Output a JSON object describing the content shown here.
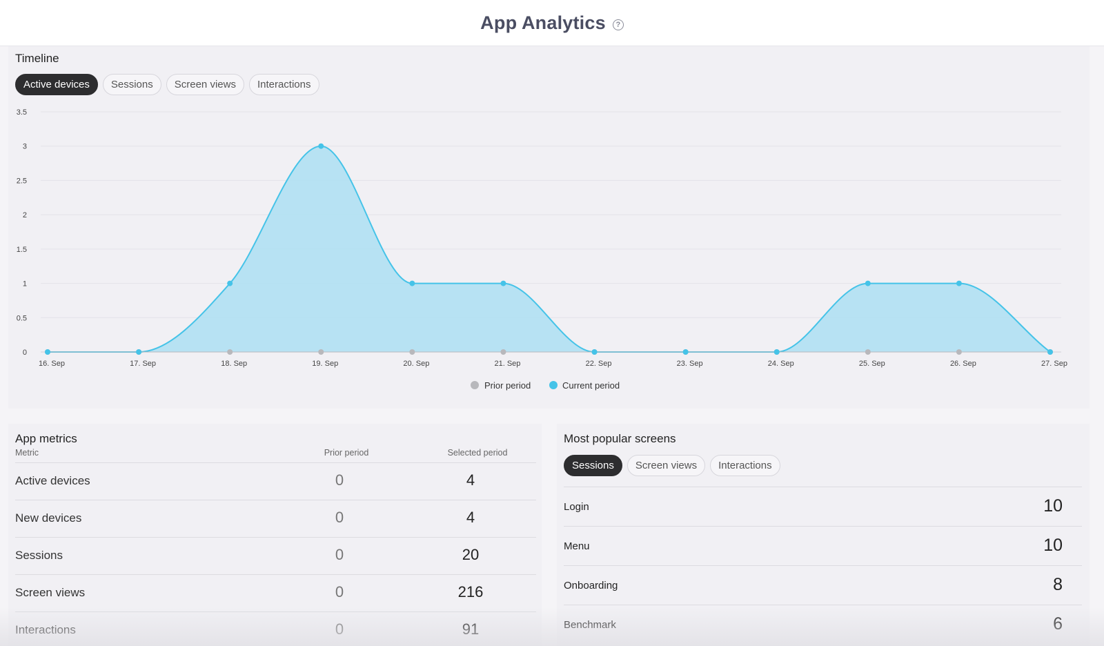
{
  "header": {
    "title": "App Analytics",
    "help_icon": "question-circle-icon"
  },
  "timeline": {
    "title": "Timeline",
    "tabs": [
      {
        "label": "Active devices",
        "active": true
      },
      {
        "label": "Sessions",
        "active": false
      },
      {
        "label": "Screen views",
        "active": false
      },
      {
        "label": "Interactions",
        "active": false
      }
    ]
  },
  "chart_data": {
    "type": "area",
    "x": [
      "16. Sep",
      "17. Sep",
      "18. Sep",
      "19. Sep",
      "20. Sep",
      "21. Sep",
      "22. Sep",
      "23. Sep",
      "24. Sep",
      "25. Sep",
      "26. Sep",
      "27. Sep"
    ],
    "y_ticks": [
      "0",
      "0.5",
      "1",
      "1.5",
      "2",
      "2.5",
      "3",
      "3.5"
    ],
    "ylim": [
      0,
      3.5
    ],
    "grid": true,
    "legend_position": "bottom-center",
    "series": [
      {
        "name": "Prior period",
        "color": "#b8b8bc",
        "values": [
          0,
          0,
          0,
          0,
          0,
          0,
          0,
          0,
          0,
          0,
          0,
          0
        ]
      },
      {
        "name": "Current period",
        "color": "#45c3e8",
        "fill": "#b3e0f2",
        "values": [
          0,
          0,
          1,
          3,
          1,
          1,
          0,
          0,
          0,
          1,
          1,
          0
        ]
      }
    ]
  },
  "metrics": {
    "title": "App metrics",
    "columns": {
      "metric": "Metric",
      "prior": "Prior period",
      "selected": "Selected period"
    },
    "rows": [
      {
        "label": "Active devices",
        "prior": "0",
        "selected": "4"
      },
      {
        "label": "New devices",
        "prior": "0",
        "selected": "4"
      },
      {
        "label": "Sessions",
        "prior": "0",
        "selected": "20"
      },
      {
        "label": "Screen views",
        "prior": "0",
        "selected": "216"
      },
      {
        "label": "Interactions",
        "prior": "0",
        "selected": "91"
      }
    ]
  },
  "screens": {
    "title": "Most popular screens",
    "tabs": [
      {
        "label": "Sessions",
        "active": true
      },
      {
        "label": "Screen views",
        "active": false
      },
      {
        "label": "Interactions",
        "active": false
      }
    ],
    "rows": [
      {
        "label": "Login",
        "value": "10"
      },
      {
        "label": "Menu",
        "value": "10"
      },
      {
        "label": "Onboarding",
        "value": "8"
      },
      {
        "label": "Benchmark",
        "value": "6"
      }
    ]
  }
}
